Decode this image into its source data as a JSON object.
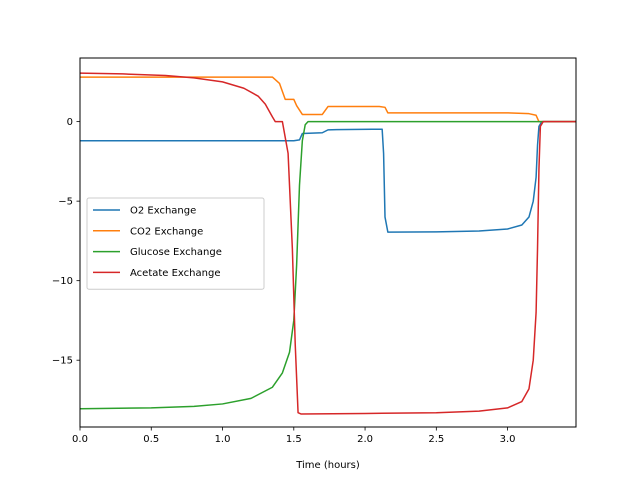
{
  "chart_data": {
    "type": "line",
    "title": "",
    "xlabel": "Time (hours)",
    "ylabel": "",
    "xlim": [
      0,
      3.48
    ],
    "ylim": [
      -19.2,
      4.0
    ],
    "xticks": [
      0.0,
      0.5,
      1.0,
      1.5,
      2.0,
      2.5,
      3.0
    ],
    "xtick_labels": [
      "0.0",
      "0.5",
      "1.0",
      "1.5",
      "2.0",
      "2.5",
      "3.0"
    ],
    "yticks": [
      0,
      -5,
      -10,
      -15
    ],
    "ytick_labels": [
      "0",
      "−5",
      "−10",
      "−15"
    ],
    "grid": false,
    "legend": "center-left",
    "series": [
      {
        "name": "O2 Exchange",
        "color": "#1f77b4",
        "points": [
          [
            0,
            -1.2
          ],
          [
            1.0,
            -1.2
          ],
          [
            1.5,
            -1.2
          ],
          [
            1.54,
            -1.15
          ],
          [
            1.56,
            -0.75
          ],
          [
            1.7,
            -0.7
          ],
          [
            1.74,
            -0.52
          ],
          [
            1.8,
            -0.5
          ],
          [
            2.05,
            -0.48
          ],
          [
            2.12,
            -0.48
          ],
          [
            2.13,
            -2.0
          ],
          [
            2.14,
            -6.0
          ],
          [
            2.16,
            -6.95
          ],
          [
            2.5,
            -6.93
          ],
          [
            2.8,
            -6.88
          ],
          [
            3.0,
            -6.75
          ],
          [
            3.1,
            -6.5
          ],
          [
            3.15,
            -6.0
          ],
          [
            3.18,
            -5.0
          ],
          [
            3.2,
            -3.5
          ],
          [
            3.21,
            -1.5
          ],
          [
            3.22,
            -0.3
          ],
          [
            3.24,
            0.0
          ],
          [
            3.48,
            0.0
          ]
        ]
      },
      {
        "name": "CO2 Exchange",
        "color": "#ff7f0e",
        "points": [
          [
            0,
            2.8
          ],
          [
            1.0,
            2.8
          ],
          [
            1.35,
            2.8
          ],
          [
            1.4,
            2.4
          ],
          [
            1.44,
            1.4
          ],
          [
            1.5,
            1.4
          ],
          [
            1.52,
            1.0
          ],
          [
            1.56,
            0.45
          ],
          [
            1.7,
            0.45
          ],
          [
            1.74,
            0.95
          ],
          [
            2.1,
            0.95
          ],
          [
            2.14,
            0.9
          ],
          [
            2.16,
            0.55
          ],
          [
            2.5,
            0.55
          ],
          [
            3.0,
            0.55
          ],
          [
            3.15,
            0.5
          ],
          [
            3.2,
            0.4
          ],
          [
            3.22,
            0.0
          ],
          [
            3.48,
            0.0
          ]
        ]
      },
      {
        "name": "Glucose Exchange",
        "color": "#2ca02c",
        "points": [
          [
            0,
            -18.05
          ],
          [
            0.5,
            -18.0
          ],
          [
            0.8,
            -17.9
          ],
          [
            1.0,
            -17.75
          ],
          [
            1.2,
            -17.4
          ],
          [
            1.35,
            -16.7
          ],
          [
            1.42,
            -15.8
          ],
          [
            1.47,
            -14.5
          ],
          [
            1.5,
            -12.5
          ],
          [
            1.52,
            -9.0
          ],
          [
            1.54,
            -4.0
          ],
          [
            1.56,
            -1.2
          ],
          [
            1.58,
            -0.2
          ],
          [
            1.6,
            0.0
          ],
          [
            2.0,
            0.0
          ],
          [
            3.0,
            0.0
          ],
          [
            3.48,
            0.0
          ]
        ]
      },
      {
        "name": "Acetate Exchange",
        "color": "#d62728",
        "points": [
          [
            0,
            3.05
          ],
          [
            0.3,
            3.0
          ],
          [
            0.6,
            2.9
          ],
          [
            0.8,
            2.75
          ],
          [
            1.0,
            2.5
          ],
          [
            1.15,
            2.1
          ],
          [
            1.25,
            1.6
          ],
          [
            1.3,
            1.1
          ],
          [
            1.35,
            0.3
          ],
          [
            1.37,
            0.0
          ],
          [
            1.42,
            0.0
          ],
          [
            1.46,
            -2.0
          ],
          [
            1.49,
            -8.0
          ],
          [
            1.51,
            -14.0
          ],
          [
            1.53,
            -18.3
          ],
          [
            1.55,
            -18.38
          ],
          [
            2.0,
            -18.35
          ],
          [
            2.5,
            -18.3
          ],
          [
            2.8,
            -18.2
          ],
          [
            3.0,
            -18.0
          ],
          [
            3.1,
            -17.6
          ],
          [
            3.15,
            -16.8
          ],
          [
            3.18,
            -15.0
          ],
          [
            3.2,
            -12.0
          ],
          [
            3.21,
            -8.0
          ],
          [
            3.22,
            -3.0
          ],
          [
            3.23,
            -0.3
          ],
          [
            3.25,
            0.0
          ],
          [
            3.48,
            0.0
          ]
        ]
      }
    ]
  }
}
